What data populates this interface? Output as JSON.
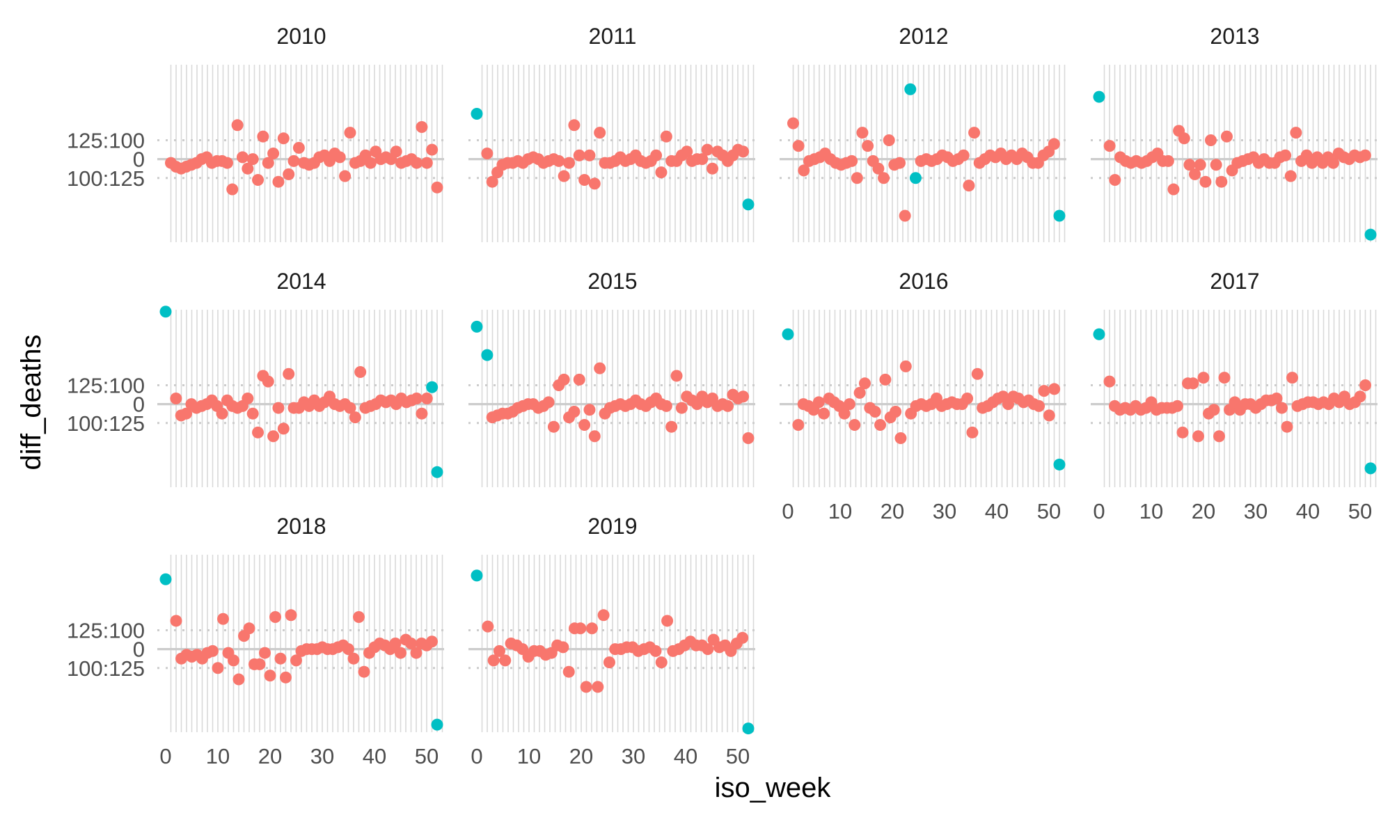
{
  "chart_data": {
    "type": "scatter",
    "layout": "facet_wrap",
    "xlabel": "iso_week",
    "ylabel": "diff_deaths",
    "x_ticks": [
      0,
      10,
      20,
      30,
      40,
      50
    ],
    "y_tick_labels": [
      "125:100",
      "0",
      "100:125"
    ],
    "xlim": [
      0,
      52
    ],
    "ylim": [
      -220,
      250
    ],
    "grid": "vertical lines per week; dotted lines at y tick labels",
    "colors": {
      "regular": "#F8766D",
      "outlier": "#00BFC4"
    },
    "panels": [
      {
        "label": "2010",
        "y": [
          -10,
          -20,
          -25,
          -20,
          -15,
          -10,
          0,
          5,
          -10,
          -5,
          -5,
          -10,
          -80,
          90,
          5,
          -25,
          0,
          -55,
          60,
          -10,
          15,
          -60,
          55,
          -40,
          -5,
          30,
          -10,
          -15,
          -10,
          5,
          10,
          -5,
          15,
          5,
          -45,
          70,
          -10,
          -5,
          10,
          -10,
          20,
          0,
          5,
          0,
          20,
          -10,
          -5,
          0,
          -10,
          85,
          -10,
          25,
          -75
        ],
        "outliers": []
      },
      {
        "label": "2011",
        "y": [
          120,
          15,
          -60,
          -35,
          -15,
          -10,
          -10,
          -5,
          -10,
          0,
          5,
          0,
          -10,
          -5,
          0,
          -5,
          -45,
          -10,
          90,
          10,
          -55,
          10,
          -65,
          70,
          -10,
          -10,
          -5,
          5,
          -5,
          0,
          10,
          -5,
          -10,
          -5,
          10,
          -35,
          60,
          -5,
          -5,
          10,
          20,
          -5,
          0,
          0,
          25,
          -25,
          20,
          10,
          -5,
          10,
          25,
          20,
          -120
        ],
        "outliers": [
          0,
          52
        ]
      },
      {
        "label": "2012",
        "y": [
          95,
          35,
          -30,
          -5,
          0,
          5,
          15,
          0,
          -10,
          -15,
          -10,
          -5,
          -50,
          70,
          35,
          -5,
          -25,
          -50,
          50,
          -15,
          -10,
          -150,
          185,
          -50,
          -5,
          0,
          -5,
          0,
          10,
          5,
          -5,
          0,
          10,
          -70,
          70,
          -10,
          0,
          10,
          5,
          15,
          0,
          10,
          0,
          15,
          5,
          -10,
          -10,
          10,
          20,
          40,
          -150
        ],
        "outliers": [
          22,
          23,
          52
        ]
      },
      {
        "label": "2013",
        "y": [
          165,
          35,
          -55,
          5,
          -5,
          -10,
          -5,
          -10,
          -5,
          5,
          15,
          -5,
          -5,
          -80,
          75,
          55,
          -15,
          -40,
          -15,
          -60,
          50,
          -15,
          -60,
          60,
          -30,
          -10,
          -5,
          0,
          5,
          -10,
          0,
          -10,
          -10,
          5,
          10,
          -45,
          70,
          -5,
          10,
          -10,
          5,
          -10,
          5,
          -10,
          15,
          5,
          0,
          10,
          5,
          10,
          -200
        ],
        "outliers": [
          0,
          51
        ]
      },
      {
        "label": "2014",
        "y": [
          250,
          15,
          -30,
          -25,
          0,
          -10,
          -5,
          0,
          10,
          -5,
          -25,
          10,
          -5,
          -10,
          -5,
          15,
          -25,
          -75,
          75,
          60,
          -85,
          -10,
          -65,
          80,
          -10,
          -10,
          5,
          -5,
          10,
          -5,
          5,
          20,
          0,
          -5,
          0,
          -10,
          -35,
          85,
          -10,
          -5,
          0,
          10,
          5,
          10,
          0,
          15,
          5,
          10,
          15,
          -25,
          15,
          45,
          -180
        ],
        "outliers": [
          0,
          51
        ]
      },
      {
        "label": "2015",
        "y": [
          205,
          130,
          -35,
          -30,
          -25,
          -25,
          -20,
          -10,
          -5,
          0,
          0,
          -10,
          -5,
          5,
          -60,
          50,
          65,
          -35,
          -20,
          65,
          -55,
          -15,
          -85,
          95,
          -25,
          -10,
          -5,
          0,
          -5,
          0,
          10,
          0,
          -5,
          5,
          15,
          0,
          -5,
          -60,
          75,
          -10,
          20,
          10,
          0,
          20,
          5,
          15,
          -5,
          0,
          -5,
          25,
          15,
          20,
          -90
        ],
        "outliers": [
          0,
          1
        ]
      },
      {
        "label": "2016",
        "y": [
          185,
          -55,
          0,
          -5,
          -15,
          5,
          -25,
          15,
          5,
          -5,
          -25,
          0,
          -55,
          30,
          55,
          -10,
          -20,
          -55,
          65,
          -35,
          -20,
          -90,
          100,
          -25,
          -5,
          0,
          -5,
          0,
          15,
          -5,
          0,
          5,
          0,
          0,
          15,
          -75,
          80,
          -10,
          -5,
          5,
          15,
          20,
          0,
          20,
          15,
          5,
          10,
          0,
          -5,
          35,
          -30,
          40,
          -160
        ],
        "outliers": [
          0,
          52
        ]
      },
      {
        "label": "2017",
        "y": [
          185,
          60,
          -5,
          -15,
          -10,
          -15,
          -5,
          -15,
          -10,
          5,
          -15,
          -10,
          -10,
          -10,
          -5,
          -75,
          55,
          55,
          -85,
          70,
          -25,
          -15,
          -85,
          70,
          -15,
          5,
          -15,
          0,
          0,
          -10,
          0,
          10,
          10,
          15,
          -10,
          -60,
          70,
          -5,
          0,
          5,
          5,
          0,
          5,
          0,
          15,
          5,
          20,
          0,
          5,
          20,
          50,
          -170
        ],
        "outliers": [
          0,
          51
        ]
      },
      {
        "label": "2018",
        "y": [
          185,
          75,
          -25,
          -15,
          -20,
          -15,
          -25,
          -10,
          -5,
          -50,
          80,
          -10,
          -30,
          -80,
          35,
          55,
          -40,
          -40,
          -10,
          -70,
          85,
          -25,
          -75,
          90,
          -30,
          -5,
          0,
          0,
          0,
          5,
          0,
          0,
          5,
          10,
          0,
          -25,
          85,
          -60,
          -10,
          5,
          15,
          10,
          0,
          15,
          -10,
          25,
          15,
          -10,
          15,
          10,
          20,
          -200
        ],
        "outliers": [
          0,
          51
        ]
      },
      {
        "label": "2019",
        "y": [
          195,
          60,
          -30,
          -5,
          -30,
          15,
          10,
          0,
          -20,
          -5,
          -5,
          -15,
          -10,
          10,
          5,
          -60,
          55,
          55,
          -100,
          55,
          -100,
          90,
          -35,
          0,
          0,
          5,
          5,
          -5,
          0,
          5,
          -5,
          -35,
          75,
          -5,
          0,
          10,
          20,
          10,
          10,
          0,
          25,
          5,
          10,
          -5,
          15,
          30,
          -210
        ],
        "outliers": [
          0,
          51
        ]
      }
    ]
  }
}
